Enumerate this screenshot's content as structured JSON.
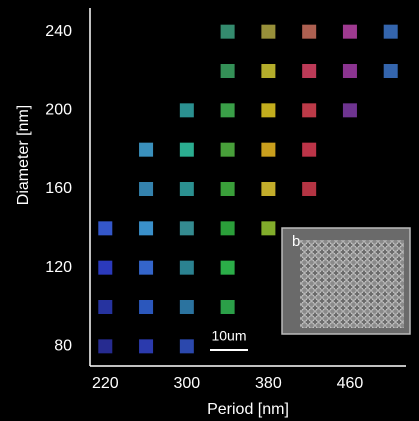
{
  "chart_data": {
    "type": "scatter",
    "xlabel": "Period [nm]",
    "ylabel": "Diameter [nm]",
    "xlim": [
      205,
      515
    ],
    "ylim": [
      70,
      250
    ],
    "xticks": [
      220,
      300,
      380,
      460
    ],
    "yticks": [
      80,
      120,
      160,
      200,
      240
    ],
    "x": [
      340,
      380,
      420,
      460,
      500,
      340,
      380,
      420,
      460,
      500,
      300,
      340,
      380,
      420,
      460,
      260,
      300,
      340,
      380,
      420,
      260,
      300,
      340,
      380,
      420,
      220,
      260,
      300,
      340,
      380,
      220,
      260,
      300,
      340,
      220,
      260,
      300,
      340,
      220,
      260,
      300
    ],
    "y": [
      240,
      240,
      240,
      240,
      240,
      220,
      220,
      220,
      220,
      220,
      200,
      200,
      200,
      200,
      200,
      180,
      180,
      180,
      180,
      180,
      160,
      160,
      160,
      160,
      160,
      140,
      140,
      140,
      140,
      140,
      120,
      120,
      120,
      120,
      100,
      100,
      100,
      100,
      80,
      80,
      80
    ],
    "colors": [
      "#3a9a7a",
      "#a8a040",
      "#c06a5a",
      "#b040a0",
      "#3a70c0",
      "#3aa060",
      "#c8c030",
      "#d04060",
      "#9a3aa0",
      "#3a70c0",
      "#30a0a0",
      "#40b050",
      "#d8c020",
      "#d04050",
      "#7a3aa0",
      "#40a0d0",
      "#30c0a0",
      "#50b040",
      "#e0b020",
      "#d03a50",
      "#3a90c0",
      "#30a0a0",
      "#40b040",
      "#d8c030",
      "#c83a4a",
      "#3a60e0",
      "#40a0e0",
      "#3a9aa0",
      "#30b040",
      "#90c030",
      "#3040d0",
      "#3a70e0",
      "#3090a0",
      "#30c050",
      "#2a38b0",
      "#3060d0",
      "#3080b0",
      "#30b050",
      "#2a30a0",
      "#3040c0",
      "#3050c0"
    ],
    "annotations": [
      "10um",
      "b"
    ]
  }
}
